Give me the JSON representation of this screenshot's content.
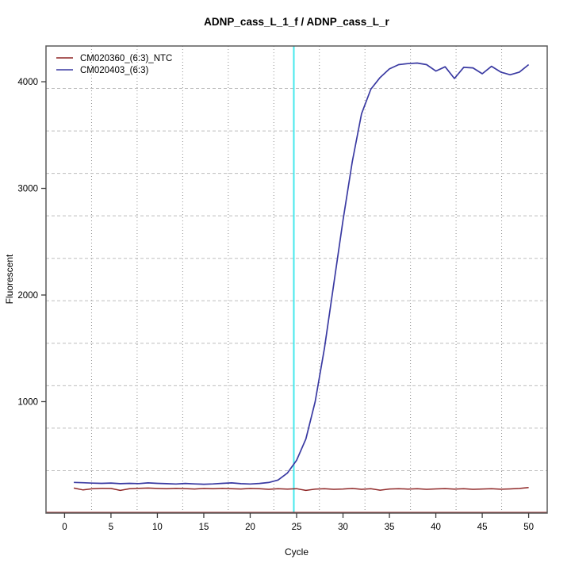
{
  "title": "ADNP_cass_L_1_f / ADNP_cass_L_r",
  "axes": {
    "x_label": "Cycle",
    "y_label": "Fluorescent"
  },
  "colors": {
    "background": "#ffffff",
    "box_border": "#5a5a5a",
    "grid_vertical": "#8f8f8f",
    "grid_horizontal": "#bdbdbd",
    "threshold_line": "#45e8ec",
    "baseline_line": "#8b1a1a",
    "ntc_series": "#8f2727",
    "sample_series": "#3a3aa2",
    "tick": "#3c3c3c"
  },
  "legend": {
    "position": "top-left",
    "entries": [
      {
        "label": "CM020360_(6:3)_NTC",
        "color": "#8f2727"
      },
      {
        "label": "CM020403_(6:3)",
        "color": "#3a3aa2"
      }
    ]
  },
  "chart_data": {
    "type": "line",
    "title": "ADNP_cass_L_1_f / ADNP_cass_L_r",
    "xlabel": "Cycle",
    "ylabel": "Fluorescent",
    "xlim": [
      -2,
      52
    ],
    "ylim": [
      -45,
      4335
    ],
    "x_ticks": [
      0,
      5,
      10,
      15,
      20,
      25,
      30,
      35,
      40,
      45,
      50
    ],
    "y_ticks": [
      1000,
      2000,
      3000,
      4000
    ],
    "grid": {
      "on": true,
      "nx_divisions": 11,
      "ny_divisions": 11,
      "v_style": "dotted",
      "h_style": "dashed"
    },
    "threshold_cycle_x": 24.7,
    "baseline_value": 0,
    "x": [
      1,
      2,
      3,
      4,
      5,
      6,
      7,
      8,
      9,
      10,
      11,
      12,
      13,
      14,
      15,
      16,
      17,
      18,
      19,
      20,
      21,
      22,
      23,
      24,
      25,
      26,
      27,
      28,
      29,
      30,
      31,
      32,
      33,
      34,
      35,
      36,
      37,
      38,
      39,
      40,
      41,
      42,
      43,
      44,
      45,
      46,
      47,
      48,
      49,
      50
    ],
    "series": [
      {
        "name": "CM020360_(6:3)_NTC",
        "color": "#8f2727",
        "values": [
          190,
          172,
          183,
          188,
          186,
          168,
          183,
          188,
          190,
          186,
          183,
          188,
          185,
          181,
          186,
          183,
          188,
          184,
          181,
          186,
          183,
          178,
          183,
          180,
          184,
          168,
          180,
          184,
          178,
          181,
          186,
          178,
          184,
          170,
          181,
          184,
          180,
          183,
          178,
          182,
          185,
          180,
          183,
          178,
          181,
          184,
          179,
          182,
          186,
          195
        ]
      },
      {
        "name": "CM020403_(6:3)",
        "color": "#3a3aa2",
        "values": [
          243,
          240,
          236,
          234,
          237,
          231,
          234,
          232,
          238,
          234,
          231,
          228,
          233,
          229,
          226,
          229,
          234,
          238,
          231,
          228,
          233,
          242,
          265,
          330,
          450,
          650,
          1000,
          1500,
          2100,
          2700,
          3250,
          3700,
          3930,
          4040,
          4120,
          4160,
          4170,
          4175,
          4160,
          4100,
          4140,
          4030,
          4135,
          4130,
          4075,
          4145,
          4090,
          4065,
          4090,
          4160
        ]
      }
    ]
  }
}
